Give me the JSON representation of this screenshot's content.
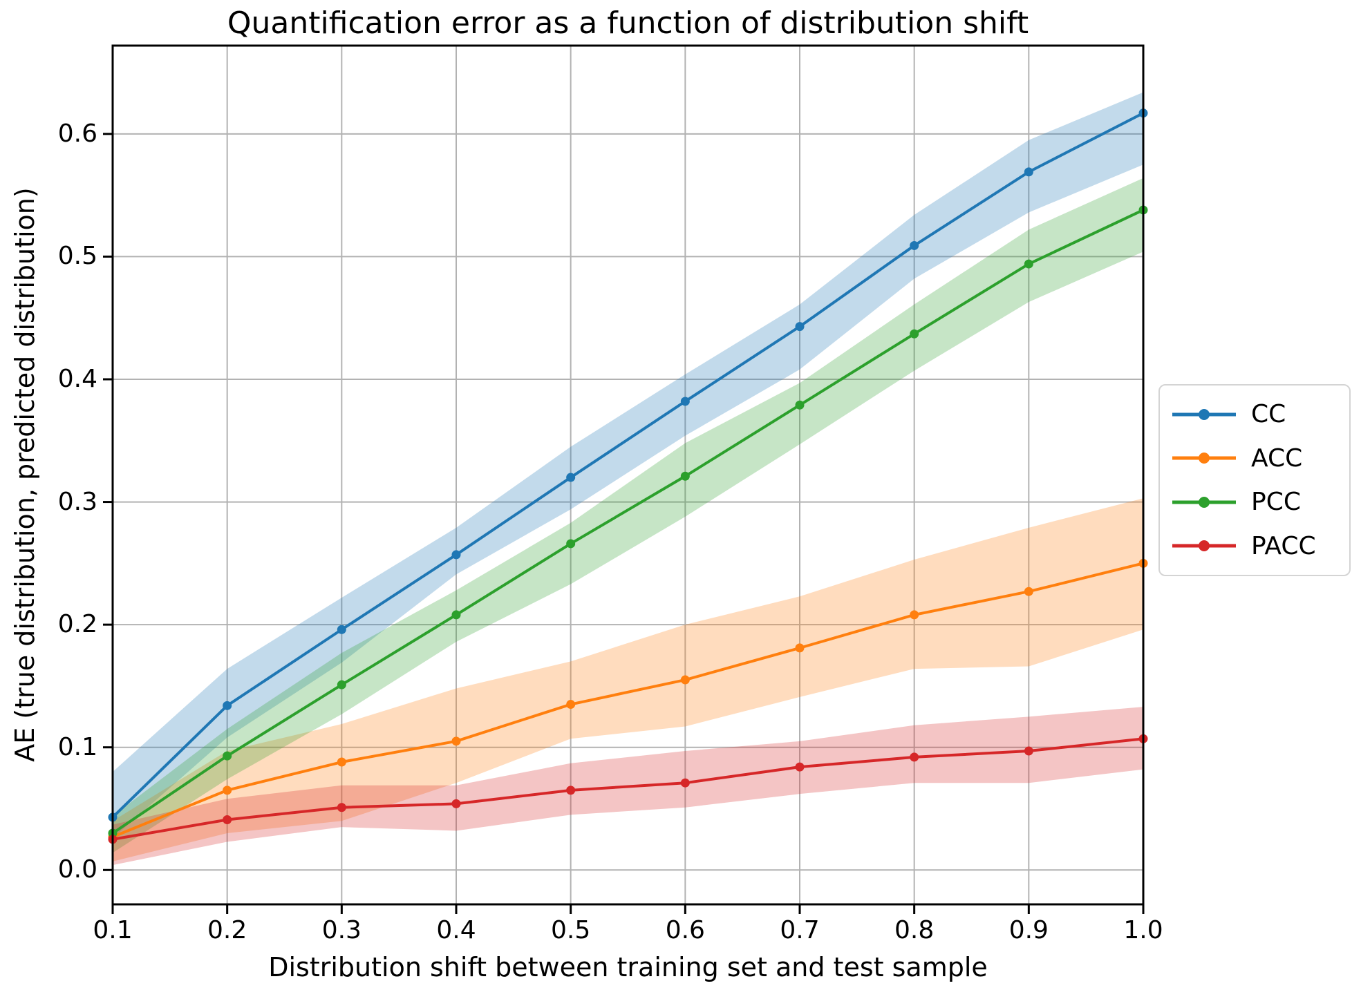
{
  "chart_data": {
    "type": "line",
    "title": "Quantification error as a function of distribution shift",
    "xlabel": "Distribution shift between training set and test sample",
    "ylabel": "AE (true distribution, predicted distribution)",
    "x": [
      0.1,
      0.2,
      0.3,
      0.4,
      0.5,
      0.6,
      0.7,
      0.8,
      0.9,
      1.0
    ],
    "xlim": [
      0.1,
      1.0
    ],
    "ylim": [
      -0.028,
      0.672
    ],
    "xtick_labels": [
      "0.1",
      "0.2",
      "0.3",
      "0.4",
      "0.5",
      "0.6",
      "0.7",
      "0.8",
      "0.9",
      "1.0"
    ],
    "ytick_labels": [
      "0.0",
      "0.1",
      "0.2",
      "0.3",
      "0.4",
      "0.5",
      "0.6"
    ],
    "ytick_values": [
      0.0,
      0.1,
      0.2,
      0.3,
      0.4,
      0.5,
      0.6
    ],
    "grid": true,
    "legend_position": "outside-right",
    "marker": "circle",
    "band_opacity": 0.27,
    "series": [
      {
        "name": "CC",
        "color": "#1f77b4",
        "values": [
          0.043,
          0.134,
          0.196,
          0.257,
          0.32,
          0.382,
          0.443,
          0.509,
          0.569,
          0.617
        ],
        "band_lower": [
          0.026,
          0.108,
          0.169,
          0.241,
          0.294,
          0.354,
          0.408,
          0.482,
          0.536,
          0.575
        ],
        "band_upper": [
          0.08,
          0.164,
          0.222,
          0.279,
          0.345,
          0.404,
          0.461,
          0.534,
          0.595,
          0.634
        ]
      },
      {
        "name": "ACC",
        "color": "#ff7f0e",
        "values": [
          0.027,
          0.065,
          0.088,
          0.105,
          0.135,
          0.155,
          0.181,
          0.208,
          0.227,
          0.25
        ],
        "band_lower": [
          0.007,
          0.03,
          0.04,
          0.071,
          0.107,
          0.117,
          0.141,
          0.164,
          0.166,
          0.196
        ],
        "band_upper": [
          0.04,
          0.097,
          0.119,
          0.148,
          0.17,
          0.2,
          0.223,
          0.253,
          0.279,
          0.303
        ]
      },
      {
        "name": "PCC",
        "color": "#2ca02c",
        "values": [
          0.03,
          0.093,
          0.151,
          0.208,
          0.266,
          0.321,
          0.379,
          0.437,
          0.494,
          0.538
        ],
        "band_lower": [
          0.014,
          0.074,
          0.127,
          0.186,
          0.233,
          0.288,
          0.347,
          0.407,
          0.463,
          0.504
        ],
        "band_upper": [
          0.044,
          0.115,
          0.177,
          0.228,
          0.283,
          0.348,
          0.397,
          0.461,
          0.522,
          0.564
        ]
      },
      {
        "name": "PACC",
        "color": "#d62728",
        "values": [
          0.025,
          0.041,
          0.051,
          0.054,
          0.065,
          0.071,
          0.084,
          0.092,
          0.097,
          0.107
        ],
        "band_lower": [
          0.004,
          0.023,
          0.035,
          0.032,
          0.045,
          0.051,
          0.062,
          0.071,
          0.071,
          0.082
        ],
        "band_upper": [
          0.037,
          0.058,
          0.069,
          0.069,
          0.087,
          0.097,
          0.105,
          0.118,
          0.125,
          0.133
        ]
      }
    ],
    "legend_entries": [
      "CC",
      "ACC",
      "PCC",
      "PACC"
    ]
  },
  "colors": {
    "background": "#ffffff",
    "grid": "#b2b2b2",
    "spine": "#000000",
    "tick": "#000000",
    "legend_border": "#d4d4d4"
  }
}
